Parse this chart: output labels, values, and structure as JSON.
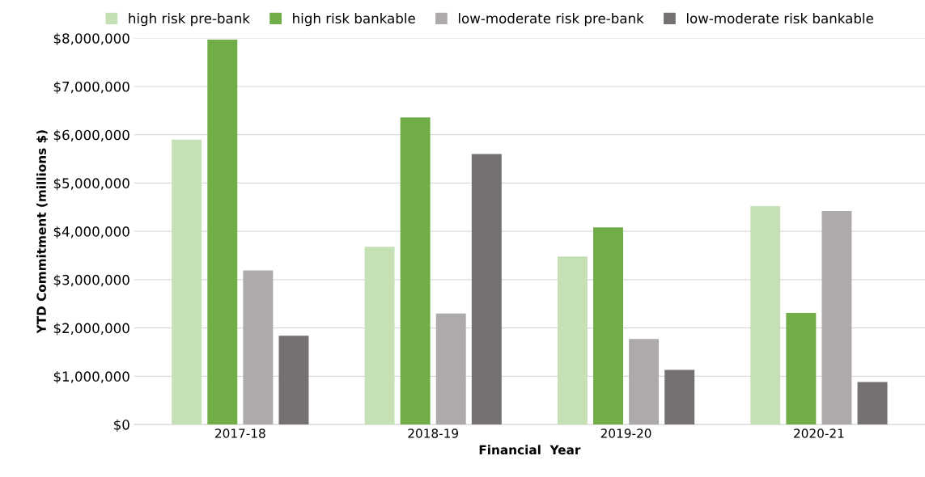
{
  "chart_data": {
    "type": "bar",
    "xlabel": "Financial  Year",
    "ylabel": "YTD Commitment (millions $)",
    "categories": [
      "2017-18",
      "2018-19",
      "2019-20",
      "2020-21"
    ],
    "series": [
      {
        "name": "high risk pre-bank",
        "color": "#c5e0b4",
        "values": [
          5900000,
          3680000,
          3480000,
          4520000
        ]
      },
      {
        "name": "high risk bankable",
        "color": "#70ad47",
        "values": [
          7970000,
          6360000,
          4080000,
          2310000
        ]
      },
      {
        "name": "low-moderate risk pre-bank",
        "color": "#aeaaaa",
        "values": [
          3190000,
          2300000,
          1770000,
          4420000
        ]
      },
      {
        "name": "low-moderate risk bankable",
        "color": "#767171",
        "values": [
          1840000,
          5600000,
          1130000,
          880000
        ]
      }
    ],
    "ylim": [
      0,
      8000000
    ],
    "yticks": [
      {
        "value": 0,
        "label": "$0"
      },
      {
        "value": 1000000,
        "label": "$1,000,000"
      },
      {
        "value": 2000000,
        "label": "$2,000,000"
      },
      {
        "value": 3000000,
        "label": "$3,000,000"
      },
      {
        "value": 4000000,
        "label": "$4,000,000"
      },
      {
        "value": 5000000,
        "label": "$5,000,000"
      },
      {
        "value": 6000000,
        "label": "$6,000,000"
      },
      {
        "value": 7000000,
        "label": "$7,000,000"
      },
      {
        "value": 8000000,
        "label": "$8,000,000"
      }
    ],
    "grid": "y",
    "legend": "top"
  }
}
